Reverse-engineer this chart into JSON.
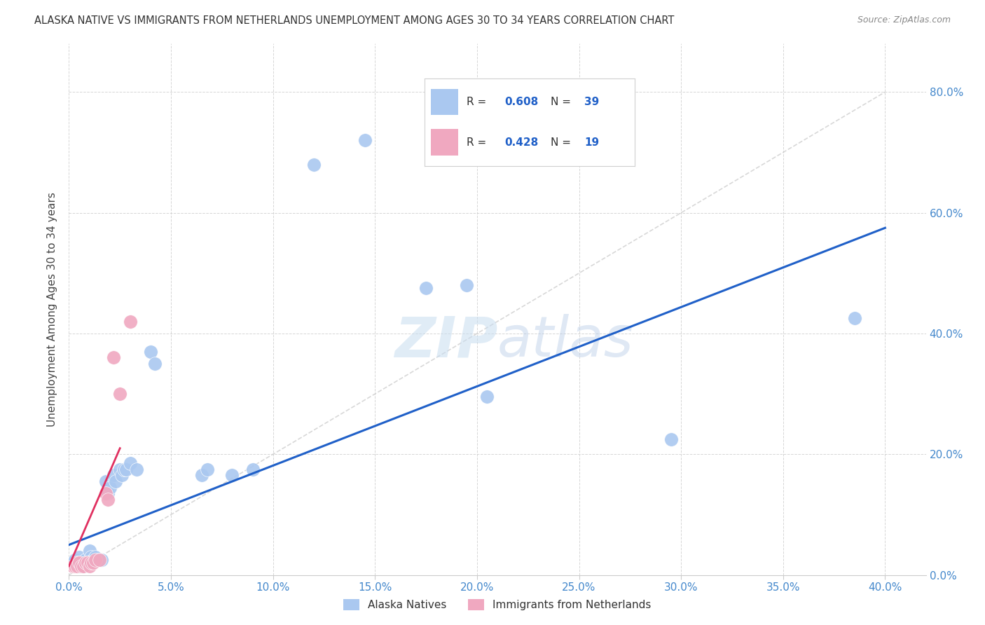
{
  "title": "ALASKA NATIVE VS IMMIGRANTS FROM NETHERLANDS UNEMPLOYMENT AMONG AGES 30 TO 34 YEARS CORRELATION CHART",
  "source": "Source: ZipAtlas.com",
  "xlim": [
    0.0,
    0.42
  ],
  "ylim": [
    0.0,
    0.88
  ],
  "legend_r_blue": "0.608",
  "legend_n_blue": "39",
  "legend_r_pink": "0.428",
  "legend_n_pink": "19",
  "legend_label_blue": "Alaska Natives",
  "legend_label_pink": "Immigrants from Netherlands",
  "watermark": "ZIPatlas",
  "blue_color": "#aac8f0",
  "pink_color": "#f0a8c0",
  "blue_line_color": "#2060c8",
  "pink_line_color": "#e03060",
  "diag_line_color": "#c8c8c8",
  "blue_scatter": [
    [
      0.002,
      0.02
    ],
    [
      0.003,
      0.025
    ],
    [
      0.004,
      0.02
    ],
    [
      0.005,
      0.015
    ],
    [
      0.005,
      0.03
    ],
    [
      0.006,
      0.02
    ],
    [
      0.007,
      0.015
    ],
    [
      0.008,
      0.025
    ],
    [
      0.009,
      0.02
    ],
    [
      0.01,
      0.04
    ],
    [
      0.011,
      0.03
    ],
    [
      0.012,
      0.025
    ],
    [
      0.013,
      0.03
    ],
    [
      0.015,
      0.025
    ],
    [
      0.016,
      0.025
    ],
    [
      0.018,
      0.155
    ],
    [
      0.019,
      0.135
    ],
    [
      0.02,
      0.145
    ],
    [
      0.022,
      0.165
    ],
    [
      0.023,
      0.155
    ],
    [
      0.025,
      0.175
    ],
    [
      0.026,
      0.165
    ],
    [
      0.027,
      0.175
    ],
    [
      0.028,
      0.175
    ],
    [
      0.03,
      0.185
    ],
    [
      0.033,
      0.175
    ],
    [
      0.04,
      0.37
    ],
    [
      0.042,
      0.35
    ],
    [
      0.065,
      0.165
    ],
    [
      0.068,
      0.175
    ],
    [
      0.08,
      0.165
    ],
    [
      0.09,
      0.175
    ],
    [
      0.12,
      0.68
    ],
    [
      0.145,
      0.72
    ],
    [
      0.175,
      0.475
    ],
    [
      0.195,
      0.48
    ],
    [
      0.205,
      0.295
    ],
    [
      0.295,
      0.225
    ],
    [
      0.385,
      0.425
    ]
  ],
  "pink_scatter": [
    [
      0.002,
      0.015
    ],
    [
      0.003,
      0.015
    ],
    [
      0.004,
      0.02
    ],
    [
      0.004,
      0.015
    ],
    [
      0.005,
      0.02
    ],
    [
      0.006,
      0.015
    ],
    [
      0.007,
      0.015
    ],
    [
      0.008,
      0.02
    ],
    [
      0.009,
      0.02
    ],
    [
      0.01,
      0.015
    ],
    [
      0.011,
      0.02
    ],
    [
      0.012,
      0.02
    ],
    [
      0.013,
      0.025
    ],
    [
      0.015,
      0.025
    ],
    [
      0.018,
      0.135
    ],
    [
      0.019,
      0.125
    ],
    [
      0.022,
      0.36
    ],
    [
      0.025,
      0.3
    ],
    [
      0.03,
      0.42
    ]
  ],
  "blue_line_x": [
    0.0,
    0.4
  ],
  "blue_line_y": [
    0.05,
    0.575
  ],
  "pink_line_x": [
    0.0,
    0.025
  ],
  "pink_line_y": [
    0.015,
    0.21
  ],
  "diag_line_x": [
    0.0,
    0.4
  ],
  "diag_line_y": [
    0.0,
    0.8
  ],
  "background_color": "#ffffff",
  "grid_color": "#cccccc",
  "title_color": "#333333",
  "source_color": "#888888",
  "tick_color": "#4488cc",
  "ylabel": "Unemployment Among Ages 30 to 34 years"
}
